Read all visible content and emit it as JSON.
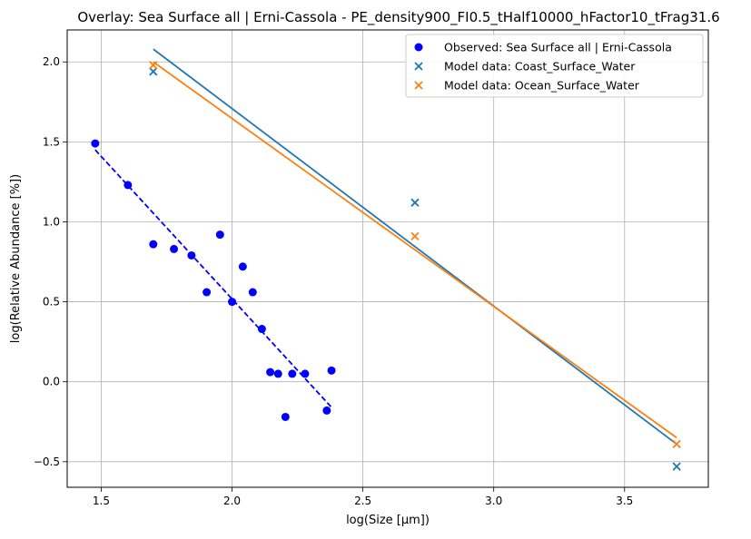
{
  "chart_data": {
    "type": "scatter",
    "title": "Overlay: Sea Surface all | Erni-Cassola - PE_density900_FI0.5_tHalf10000_hFactor10_tFrag31.6",
    "xlabel": "log(Size [μm])",
    "ylabel": "log(Relative Abundance [%])",
    "xlim": [
      1.37,
      3.82
    ],
    "ylim": [
      -0.66,
      2.2
    ],
    "x_ticks": [
      1.5,
      2.0,
      2.5,
      3.0,
      3.5
    ],
    "x_tick_labels": [
      "1.5",
      "2.0",
      "2.5",
      "3.0",
      "3.5"
    ],
    "y_ticks": [
      -0.5,
      0.0,
      0.5,
      1.0,
      1.5,
      2.0
    ],
    "y_tick_labels": [
      "−0.5",
      "0.0",
      "0.5",
      "1.0",
      "1.5",
      "2.0"
    ],
    "grid": true,
    "legend_position": "top-right",
    "series": [
      {
        "name": "Observed: Sea Surface all | Erni-Cassola",
        "marker": "circle",
        "color": "#0000ff",
        "points": [
          [
            1.477,
            1.49
          ],
          [
            1.602,
            1.23
          ],
          [
            1.699,
            0.86
          ],
          [
            1.778,
            0.83
          ],
          [
            1.845,
            0.79
          ],
          [
            1.903,
            0.56
          ],
          [
            1.954,
            0.92
          ],
          [
            2.0,
            0.5
          ],
          [
            2.041,
            0.72
          ],
          [
            2.079,
            0.56
          ],
          [
            2.114,
            0.33
          ],
          [
            2.146,
            0.06
          ],
          [
            2.176,
            0.05
          ],
          [
            2.204,
            -0.22
          ],
          [
            2.23,
            0.05
          ],
          [
            2.279,
            0.05
          ],
          [
            2.362,
            -0.18
          ],
          [
            2.38,
            0.07
          ]
        ],
        "fit": {
          "style": "dashed",
          "x": [
            1.477,
            2.38
          ],
          "y": [
            1.45,
            -0.16
          ]
        }
      },
      {
        "name": "Model data: Coast_Surface_Water",
        "marker": "x",
        "color": "#1f77b4",
        "points": [
          [
            1.699,
            1.94
          ],
          [
            2.699,
            1.12
          ],
          [
            3.699,
            -0.53
          ]
        ],
        "fit": {
          "style": "solid",
          "x": [
            1.699,
            3.699
          ],
          "y": [
            2.08,
            -0.39
          ]
        }
      },
      {
        "name": "Model data: Ocean_Surface_Water",
        "marker": "x",
        "color": "#ff7f0e",
        "points": [
          [
            1.699,
            1.98
          ],
          [
            2.699,
            0.91
          ],
          [
            3.699,
            -0.39
          ]
        ],
        "fit": {
          "style": "solid",
          "x": [
            1.699,
            3.699
          ],
          "y": [
            2.0,
            -0.35
          ]
        }
      }
    ]
  }
}
